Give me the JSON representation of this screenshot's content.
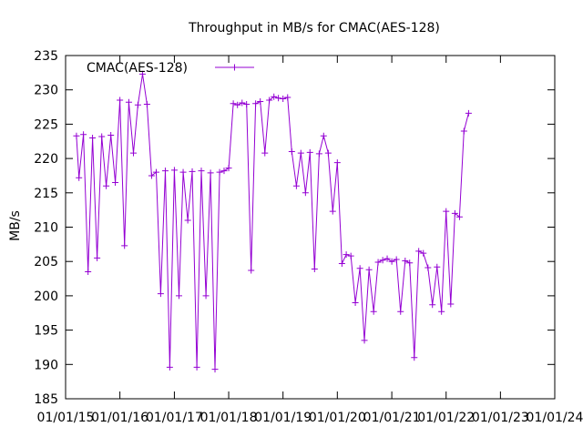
{
  "chart_data": {
    "type": "line",
    "title": "Throughput in MB/s for CMAC(AES-128)",
    "xlabel": "",
    "ylabel": "MB/s",
    "ylim": [
      185,
      235
    ],
    "yticks": [
      185,
      190,
      195,
      200,
      205,
      210,
      215,
      220,
      225,
      230,
      235
    ],
    "xlim": [
      "2015-01-01",
      "2024-01-01"
    ],
    "xticks": [
      "01/01/15",
      "01/01/16",
      "01/01/17",
      "01/01/18",
      "01/01/19",
      "01/01/20",
      "01/01/21",
      "01/01/22",
      "01/01/23",
      "01/01/24"
    ],
    "grid": false,
    "legend": "top-left",
    "series": [
      {
        "name": "CMAC(AES-128)",
        "color": "#9400d3",
        "marker": "plus",
        "points": [
          [
            "2015-03-15",
            223.3
          ],
          [
            "2015-04-01",
            217.2
          ],
          [
            "2015-05-01",
            223.5
          ],
          [
            "2015-06-01",
            203.5
          ],
          [
            "2015-07-01",
            223.0
          ],
          [
            "2015-08-01",
            205.5
          ],
          [
            "2015-09-01",
            223.2
          ],
          [
            "2015-10-01",
            216.0
          ],
          [
            "2015-11-01",
            223.4
          ],
          [
            "2015-12-01",
            216.5
          ],
          [
            "2016-01-01",
            228.5
          ],
          [
            "2016-02-01",
            207.3
          ],
          [
            "2016-03-01",
            228.2
          ],
          [
            "2016-04-01",
            220.8
          ],
          [
            "2016-05-01",
            227.8
          ],
          [
            "2016-06-01",
            232.3
          ],
          [
            "2016-07-01",
            227.9
          ],
          [
            "2016-08-01",
            217.5
          ],
          [
            "2016-09-01",
            218.0
          ],
          [
            "2016-10-01",
            200.3
          ],
          [
            "2016-11-01",
            218.2
          ],
          [
            "2016-12-01",
            189.6
          ],
          [
            "2017-01-01",
            218.3
          ],
          [
            "2017-02-01",
            200.0
          ],
          [
            "2017-03-01",
            218.0
          ],
          [
            "2017-04-01",
            211.0
          ],
          [
            "2017-05-01",
            218.1
          ],
          [
            "2017-06-01",
            189.6
          ],
          [
            "2017-07-01",
            218.2
          ],
          [
            "2017-08-01",
            200.0
          ],
          [
            "2017-09-01",
            217.9
          ],
          [
            "2017-10-01",
            189.3
          ],
          [
            "2017-11-01",
            218.0
          ],
          [
            "2017-12-01",
            218.2
          ],
          [
            "2018-01-01",
            218.6
          ],
          [
            "2018-02-01",
            228.0
          ],
          [
            "2018-03-01",
            227.8
          ],
          [
            "2018-04-01",
            228.1
          ],
          [
            "2018-05-01",
            227.9
          ],
          [
            "2018-06-01",
            203.7
          ],
          [
            "2018-07-01",
            228.0
          ],
          [
            "2018-08-01",
            228.3
          ],
          [
            "2018-09-01",
            220.8
          ],
          [
            "2018-10-01",
            228.5
          ],
          [
            "2018-11-01",
            229.0
          ],
          [
            "2018-12-01",
            228.8
          ],
          [
            "2019-01-01",
            228.7
          ],
          [
            "2019-02-01",
            228.9
          ],
          [
            "2019-03-01",
            221.0
          ],
          [
            "2019-04-01",
            216.0
          ],
          [
            "2019-05-01",
            220.8
          ],
          [
            "2019-06-01",
            215.0
          ],
          [
            "2019-07-01",
            220.9
          ],
          [
            "2019-08-01",
            203.9
          ],
          [
            "2019-09-01",
            220.7
          ],
          [
            "2019-10-01",
            223.3
          ],
          [
            "2019-11-01",
            220.8
          ],
          [
            "2019-12-01",
            212.3
          ],
          [
            "2020-01-01",
            219.4
          ],
          [
            "2020-02-01",
            204.7
          ],
          [
            "2020-03-01",
            206.0
          ],
          [
            "2020-04-01",
            205.8
          ],
          [
            "2020-05-01",
            199.0
          ],
          [
            "2020-06-01",
            204.0
          ],
          [
            "2020-07-01",
            193.5
          ],
          [
            "2020-08-01",
            203.8
          ],
          [
            "2020-09-01",
            197.7
          ],
          [
            "2020-10-01",
            204.9
          ],
          [
            "2020-11-01",
            205.2
          ],
          [
            "2020-12-01",
            205.4
          ],
          [
            "2021-01-01",
            205.0
          ],
          [
            "2021-02-01",
            205.3
          ],
          [
            "2021-03-01",
            197.7
          ],
          [
            "2021-04-01",
            205.1
          ],
          [
            "2021-05-01",
            204.8
          ],
          [
            "2021-06-01",
            191.0
          ],
          [
            "2021-07-01",
            206.5
          ],
          [
            "2021-08-01",
            206.2
          ],
          [
            "2021-09-01",
            204.1
          ],
          [
            "2021-10-01",
            198.7
          ],
          [
            "2021-11-01",
            204.2
          ],
          [
            "2021-12-01",
            197.7
          ],
          [
            "2022-01-01",
            212.3
          ],
          [
            "2022-02-01",
            198.8
          ],
          [
            "2022-03-01",
            212.0
          ],
          [
            "2022-04-01",
            211.5
          ],
          [
            "2022-05-01",
            224.0
          ],
          [
            "2022-06-01",
            226.6
          ]
        ]
      }
    ]
  }
}
